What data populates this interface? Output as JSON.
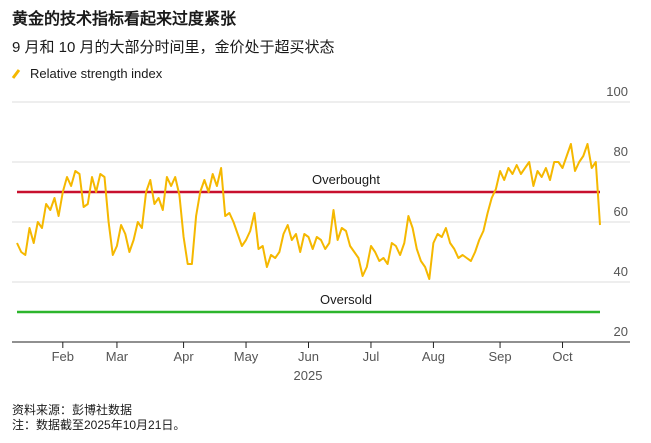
{
  "chart_data": {
    "type": "line",
    "title": "黄金的技术指标看起来过度紧张",
    "subtitle": "9 月和 10 月的大部分时间里，金价处于超买状态",
    "x_label": "2025",
    "categories": [
      null,
      null,
      null,
      null,
      null,
      null,
      null,
      null,
      null,
      null,
      null,
      "Feb",
      null,
      null,
      null,
      null,
      null,
      null,
      null,
      null,
      null,
      null,
      null,
      null,
      "Mar",
      null,
      null,
      null,
      null,
      null,
      null,
      null,
      null,
      null,
      null,
      null,
      null,
      null,
      null,
      null,
      "Apr",
      null,
      null,
      null,
      null,
      null,
      null,
      null,
      null,
      null,
      null,
      null,
      null,
      null,
      null,
      "May",
      null,
      null,
      null,
      null,
      null,
      null,
      null,
      null,
      null,
      null,
      null,
      null,
      null,
      null,
      "Jun",
      null,
      null,
      null,
      null,
      null,
      null,
      null,
      null,
      null,
      null,
      null,
      null,
      null,
      null,
      "Jul",
      null,
      null,
      null,
      null,
      null,
      null,
      null,
      null,
      null,
      null,
      null,
      null,
      null,
      null,
      "Aug",
      null,
      null,
      null,
      null,
      null,
      null,
      null,
      null,
      null,
      null,
      null,
      null,
      null,
      null,
      null,
      "Sep",
      null,
      null,
      null,
      null,
      null,
      null,
      null,
      null,
      null,
      null,
      null,
      null,
      null,
      null,
      "Oct",
      null,
      null,
      null,
      null,
      null,
      null,
      null,
      null,
      null
    ],
    "series": [
      {
        "name": "Relative strength index",
        "color": "#f5b800",
        "values": [
          53,
          50,
          49,
          58,
          53,
          60,
          58,
          66,
          64,
          68,
          62,
          70,
          75,
          72,
          77,
          76,
          65,
          66,
          75,
          70,
          76,
          75,
          60,
          49,
          52,
          59,
          56,
          50,
          54,
          60,
          58,
          70,
          74,
          66,
          68,
          64,
          75,
          72,
          75,
          69,
          55,
          46,
          46,
          62,
          70,
          74,
          70,
          76,
          72,
          78,
          62,
          63,
          60,
          56,
          52,
          54,
          57,
          63,
          51,
          52,
          45,
          49,
          48,
          50,
          56,
          59,
          54,
          56,
          50,
          56,
          55,
          51,
          55,
          54,
          51,
          53,
          64,
          54,
          58,
          57,
          52,
          50,
          48,
          42,
          45,
          52,
          50,
          47,
          48,
          46,
          53,
          52,
          49,
          53,
          62,
          58,
          51,
          47,
          45,
          41,
          53,
          56,
          55,
          58,
          53,
          51,
          48,
          49,
          48,
          47,
          50,
          54,
          57,
          63,
          68,
          71,
          77,
          74,
          78,
          76,
          79,
          76,
          78,
          80,
          72,
          77,
          75,
          78,
          74,
          80,
          80,
          78,
          82,
          86,
          77,
          80,
          82,
          86,
          78,
          80,
          59
        ]
      }
    ],
    "reference_lines": [
      {
        "label": "Overbought",
        "value": 70,
        "color": "#c8102e"
      },
      {
        "label": "Oversold",
        "value": 30,
        "color": "#2cb52c"
      }
    ],
    "ylim": [
      20,
      100
    ],
    "yticks": [
      20,
      40,
      60,
      80,
      100
    ],
    "grid": true,
    "notes": [
      "资料来源：彭博社数据",
      "注：数据截至2025年10月21日。"
    ]
  }
}
